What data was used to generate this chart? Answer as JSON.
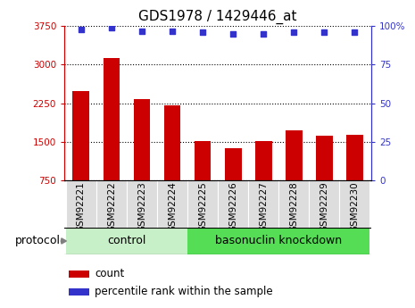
{
  "title": "GDS1978 / 1429446_at",
  "samples": [
    "GSM92221",
    "GSM92222",
    "GSM92223",
    "GSM92224",
    "GSM92225",
    "GSM92226",
    "GSM92227",
    "GSM92228",
    "GSM92229",
    "GSM92230"
  ],
  "counts": [
    2480,
    3130,
    2330,
    2200,
    1510,
    1380,
    1510,
    1720,
    1620,
    1630
  ],
  "percentile_ranks": [
    98,
    99,
    97,
    97,
    96,
    95,
    95,
    96,
    96,
    96
  ],
  "groups": [
    "control",
    "control",
    "control",
    "control",
    "basonuclin knockdown",
    "basonuclin knockdown",
    "basonuclin knockdown",
    "basonuclin knockdown",
    "basonuclin knockdown",
    "basonuclin knockdown"
  ],
  "bar_color": "#cc0000",
  "dot_color": "#3333cc",
  "left_ylim": [
    750,
    3750
  ],
  "right_ylim": [
    0,
    100
  ],
  "left_yticks": [
    750,
    1500,
    2250,
    3000,
    3750
  ],
  "right_yticks": [
    0,
    25,
    50,
    75,
    100
  ],
  "right_yticklabels": [
    "0",
    "25",
    "50",
    "75",
    "100%"
  ],
  "group_colors": {
    "control": "#c8f0c8",
    "basonuclin knockdown": "#55dd55"
  },
  "xtick_bg": "#dddddd",
  "protocol_label": "protocol",
  "legend_count_label": "count",
  "legend_percentile_label": "percentile rank within the sample",
  "title_fontsize": 11,
  "tick_label_fontsize": 7.5,
  "protocol_fontsize": 9,
  "legend_fontsize": 8.5,
  "bar_width": 0.55,
  "xlim": [
    -0.55,
    9.55
  ]
}
